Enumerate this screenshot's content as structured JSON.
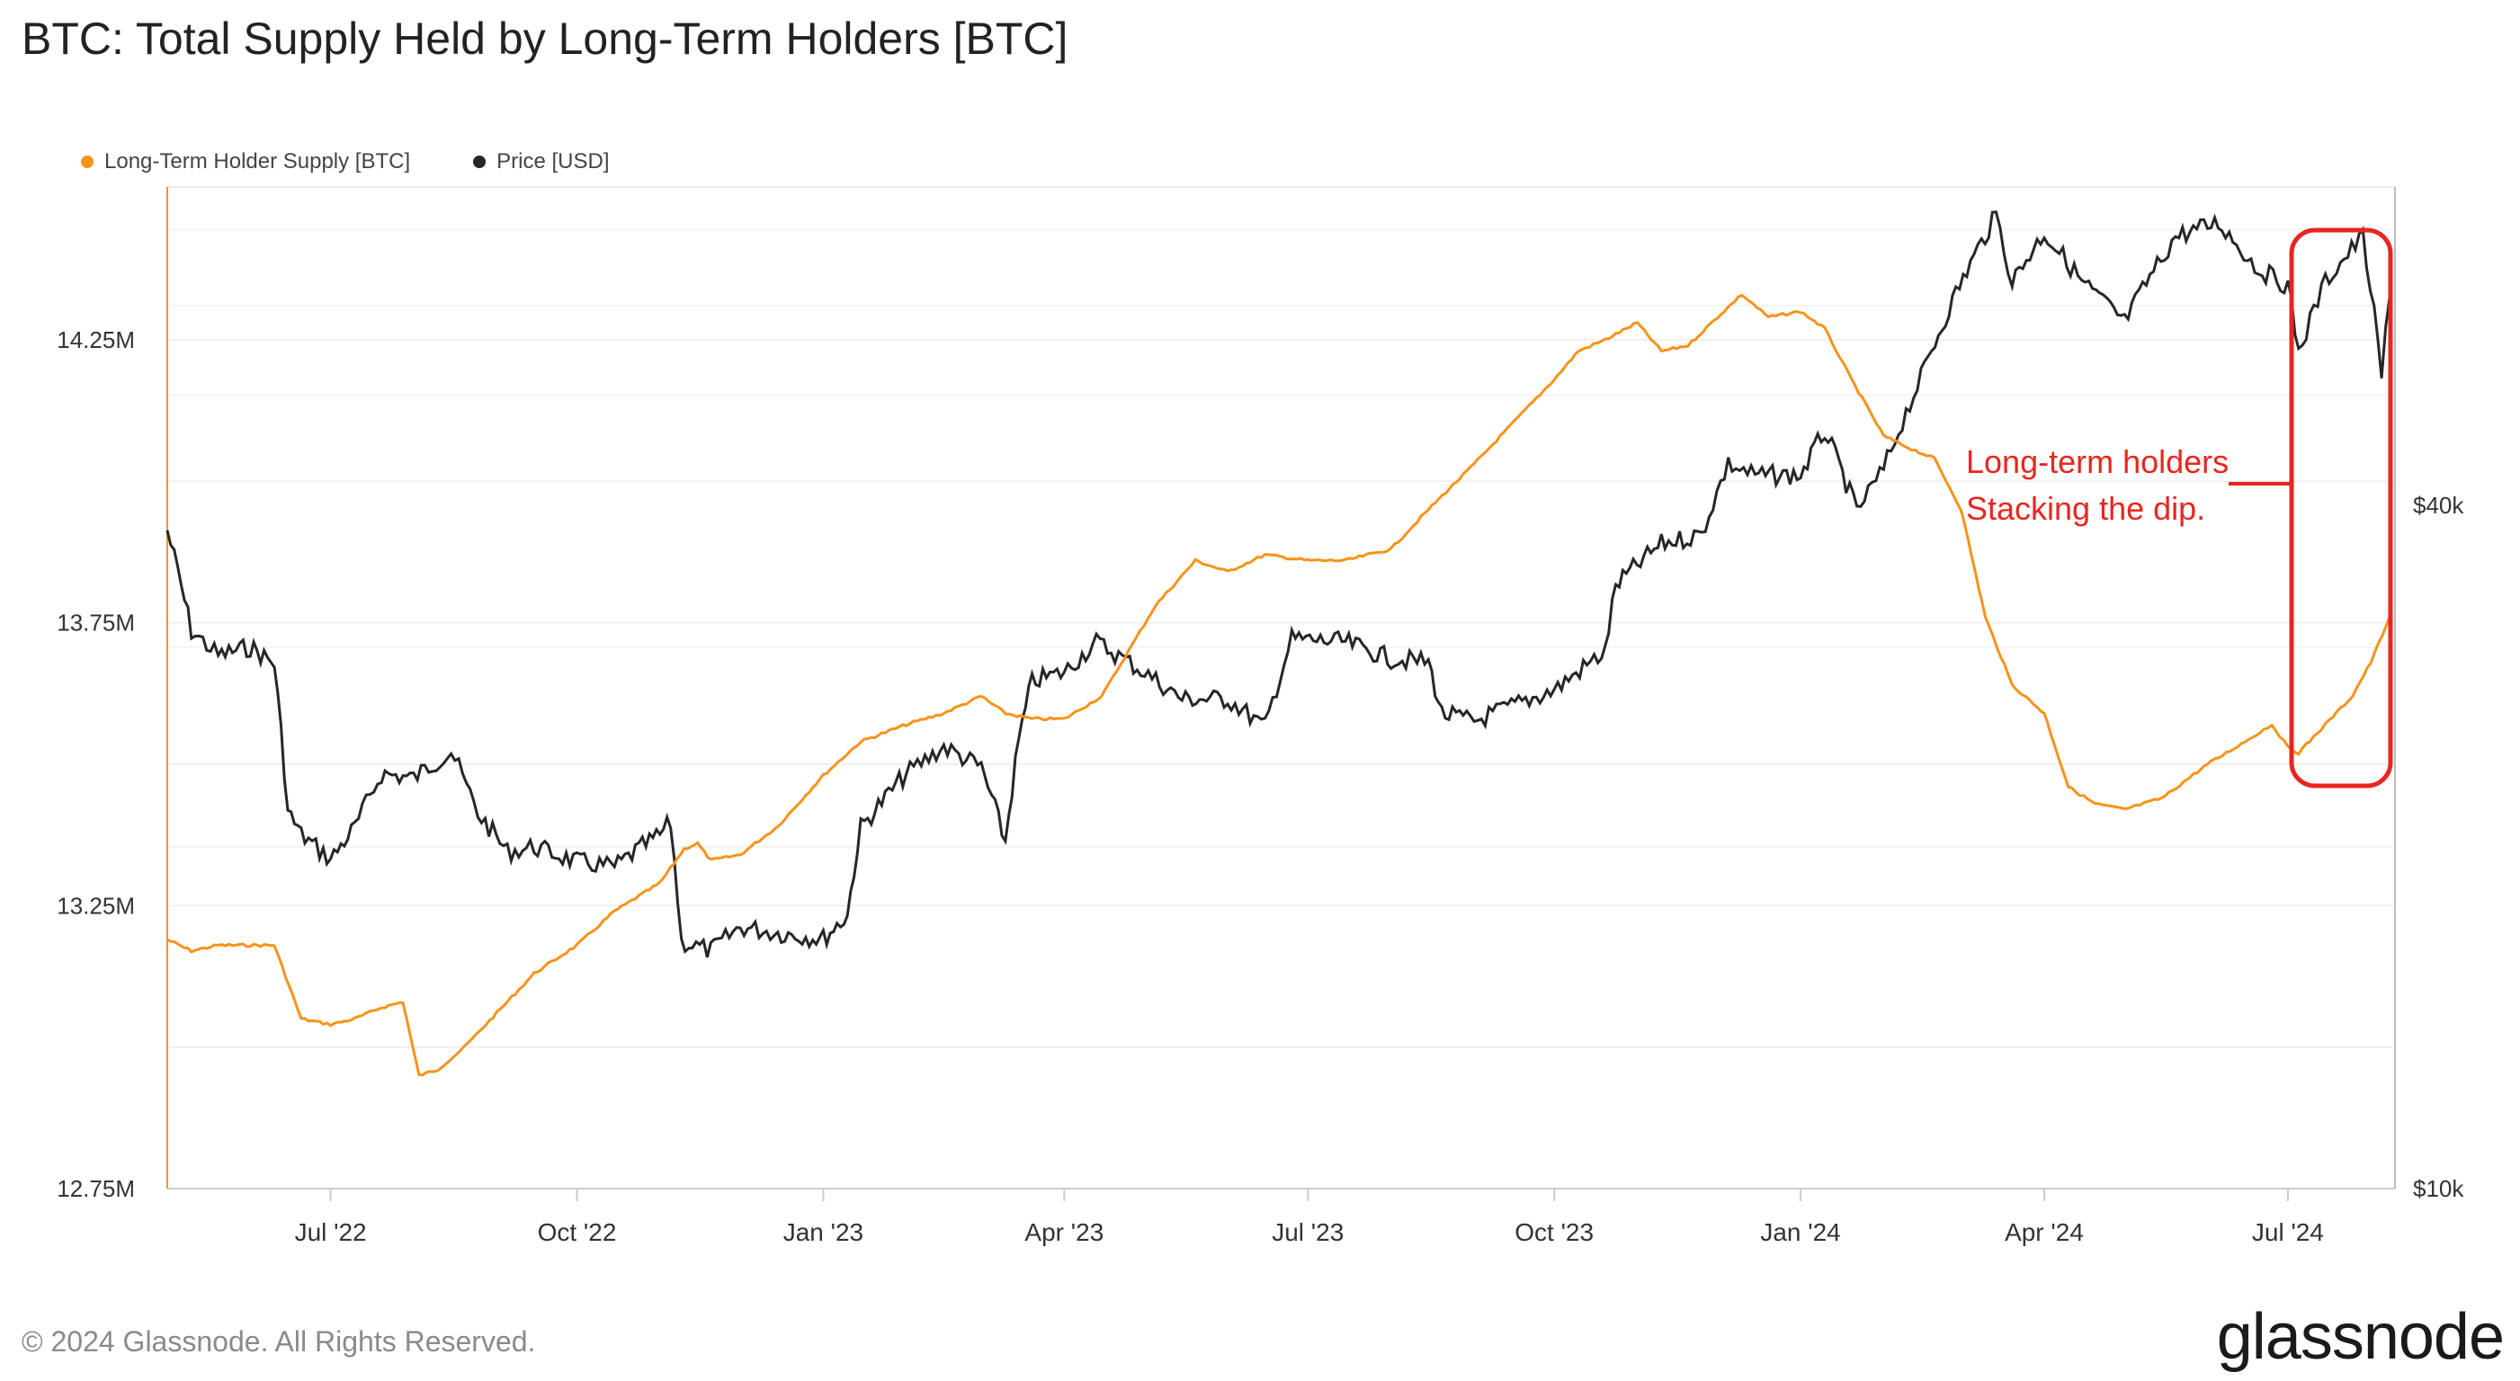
{
  "header": {
    "title": "BTC: Total Supply Held by Long-Term Holders [BTC]"
  },
  "footer": {
    "copyright": "© 2024 Glassnode. All Rights Reserved.",
    "brand": "glassnode"
  },
  "annotation": {
    "line1": "Long-term holders",
    "line2": "Stacking the dip.",
    "color": "#e8261f"
  },
  "chart_data": {
    "type": "line",
    "title": "BTC: Total Supply Held by Long-Term Holders [BTC]",
    "x_range": [
      "2022-05-01",
      "2024-08-10"
    ],
    "x_ticks": [
      {
        "label": "Jul '22",
        "date": "2022-07-01"
      },
      {
        "label": "Oct '22",
        "date": "2022-10-01"
      },
      {
        "label": "Jan '23",
        "date": "2023-01-01"
      },
      {
        "label": "Apr '23",
        "date": "2023-04-01"
      },
      {
        "label": "Jul '23",
        "date": "2023-07-01"
      },
      {
        "label": "Oct '23",
        "date": "2023-10-01"
      },
      {
        "label": "Jan '24",
        "date": "2024-01-01"
      },
      {
        "label": "Apr '24",
        "date": "2024-04-01"
      },
      {
        "label": "Jul '24",
        "date": "2024-07-01"
      }
    ],
    "y_left": {
      "ticks": [
        "14.25M",
        "13.75M",
        "13.25M",
        "12.75M"
      ],
      "tick_values": [
        14250000,
        13750000,
        13250000,
        12750000
      ],
      "range": [
        12750000,
        14520000
      ]
    },
    "y_right": {
      "scale": "log",
      "ticks": [
        "$40k",
        "$10k"
      ],
      "tick_values": [
        40000,
        10000
      ]
    },
    "grid": true,
    "legend_position": "top-left",
    "series": [
      {
        "name": "Long-Term Holder Supply [BTC]",
        "axis": "left",
        "color": "#f7931a",
        "points": [
          [
            "2022-05-01",
            13190000
          ],
          [
            "2022-05-10",
            13170000
          ],
          [
            "2022-05-20",
            13180000
          ],
          [
            "2022-06-01",
            13180000
          ],
          [
            "2022-06-10",
            13180000
          ],
          [
            "2022-06-20",
            13050000
          ],
          [
            "2022-07-01",
            13040000
          ],
          [
            "2022-07-10",
            13050000
          ],
          [
            "2022-07-20",
            13070000
          ],
          [
            "2022-07-28",
            13080000
          ],
          [
            "2022-08-03",
            12950000
          ],
          [
            "2022-08-10",
            12960000
          ],
          [
            "2022-08-20",
            13000000
          ],
          [
            "2022-09-01",
            13060000
          ],
          [
            "2022-09-15",
            13130000
          ],
          [
            "2022-10-01",
            13180000
          ],
          [
            "2022-10-15",
            13240000
          ],
          [
            "2022-11-01",
            13290000
          ],
          [
            "2022-11-10",
            13350000
          ],
          [
            "2022-11-15",
            13360000
          ],
          [
            "2022-11-20",
            13330000
          ],
          [
            "2022-12-01",
            13340000
          ],
          [
            "2022-12-15",
            13390000
          ],
          [
            "2023-01-01",
            13480000
          ],
          [
            "2023-01-15",
            13540000
          ],
          [
            "2023-02-01",
            13570000
          ],
          [
            "2023-02-15",
            13590000
          ],
          [
            "2023-03-01",
            13620000
          ],
          [
            "2023-03-10",
            13590000
          ],
          [
            "2023-03-20",
            13580000
          ],
          [
            "2023-04-01",
            13580000
          ],
          [
            "2023-04-15",
            13620000
          ],
          [
            "2023-04-25",
            13700000
          ],
          [
            "2023-05-05",
            13780000
          ],
          [
            "2023-05-20",
            13860000
          ],
          [
            "2023-06-01",
            13840000
          ],
          [
            "2023-06-15",
            13870000
          ],
          [
            "2023-07-01",
            13860000
          ],
          [
            "2023-07-15",
            13860000
          ],
          [
            "2023-08-01",
            13880000
          ],
          [
            "2023-08-15",
            13950000
          ],
          [
            "2023-09-01",
            14030000
          ],
          [
            "2023-09-15",
            14100000
          ],
          [
            "2023-10-01",
            14180000
          ],
          [
            "2023-10-10",
            14230000
          ],
          [
            "2023-10-20",
            14250000
          ],
          [
            "2023-11-01",
            14280000
          ],
          [
            "2023-11-10",
            14230000
          ],
          [
            "2023-11-20",
            14240000
          ],
          [
            "2023-12-01",
            14290000
          ],
          [
            "2023-12-10",
            14330000
          ],
          [
            "2023-12-20",
            14290000
          ],
          [
            "2024-01-01",
            14300000
          ],
          [
            "2024-01-10",
            14270000
          ],
          [
            "2024-01-20",
            14180000
          ],
          [
            "2024-02-01",
            14080000
          ],
          [
            "2024-02-10",
            14060000
          ],
          [
            "2024-02-20",
            14040000
          ],
          [
            "2024-03-01",
            13950000
          ],
          [
            "2024-03-10",
            13760000
          ],
          [
            "2024-03-20",
            13640000
          ],
          [
            "2024-04-01",
            13590000
          ],
          [
            "2024-04-10",
            13460000
          ],
          [
            "2024-04-20",
            13430000
          ],
          [
            "2024-05-01",
            13420000
          ],
          [
            "2024-05-15",
            13440000
          ],
          [
            "2024-06-01",
            13500000
          ],
          [
            "2024-06-15",
            13540000
          ],
          [
            "2024-06-25",
            13570000
          ],
          [
            "2024-07-01",
            13530000
          ],
          [
            "2024-07-05",
            13520000
          ],
          [
            "2024-07-15",
            13570000
          ],
          [
            "2024-07-25",
            13620000
          ],
          [
            "2024-08-01",
            13680000
          ],
          [
            "2024-08-08",
            13760000
          ]
        ]
      },
      {
        "name": "Price [USD]",
        "axis": "right",
        "color": "#262626",
        "points": [
          [
            "2022-05-01",
            38000
          ],
          [
            "2022-05-10",
            31000
          ],
          [
            "2022-05-20",
            29500
          ],
          [
            "2022-06-01",
            30000
          ],
          [
            "2022-06-10",
            29000
          ],
          [
            "2022-06-15",
            21500
          ],
          [
            "2022-06-20",
            20500
          ],
          [
            "2022-07-01",
            19500
          ],
          [
            "2022-07-10",
            20800
          ],
          [
            "2022-07-20",
            23200
          ],
          [
            "2022-08-01",
            23000
          ],
          [
            "2022-08-15",
            24300
          ],
          [
            "2022-08-25",
            21400
          ],
          [
            "2022-09-05",
            19800
          ],
          [
            "2022-09-15",
            20000
          ],
          [
            "2022-10-01",
            19400
          ],
          [
            "2022-10-15",
            19200
          ],
          [
            "2022-11-01",
            20500
          ],
          [
            "2022-11-05",
            21000
          ],
          [
            "2022-11-09",
            16500
          ],
          [
            "2022-11-20",
            16200
          ],
          [
            "2022-12-01",
            17000
          ],
          [
            "2022-12-15",
            16800
          ],
          [
            "2023-01-01",
            16600
          ],
          [
            "2023-01-10",
            17400
          ],
          [
            "2023-01-15",
            20800
          ],
          [
            "2023-02-01",
            23200
          ],
          [
            "2023-02-15",
            24500
          ],
          [
            "2023-03-01",
            23500
          ],
          [
            "2023-03-10",
            20200
          ],
          [
            "2023-03-15",
            24800
          ],
          [
            "2023-03-20",
            28000
          ],
          [
            "2023-04-01",
            28500
          ],
          [
            "2023-04-13",
            30300
          ],
          [
            "2023-05-01",
            28500
          ],
          [
            "2023-05-15",
            27000
          ],
          [
            "2023-06-01",
            27000
          ],
          [
            "2023-06-15",
            25500
          ],
          [
            "2023-06-25",
            30500
          ],
          [
            "2023-07-15",
            30300
          ],
          [
            "2023-08-01",
            29300
          ],
          [
            "2023-08-15",
            29100
          ],
          [
            "2023-08-20",
            26200
          ],
          [
            "2023-09-01",
            25800
          ],
          [
            "2023-09-15",
            26600
          ],
          [
            "2023-10-01",
            27500
          ],
          [
            "2023-10-20",
            29700
          ],
          [
            "2023-10-24",
            34000
          ],
          [
            "2023-11-10",
            37000
          ],
          [
            "2023-11-25",
            37700
          ],
          [
            "2023-12-05",
            43500
          ],
          [
            "2023-12-15",
            42500
          ],
          [
            "2024-01-01",
            42500
          ],
          [
            "2024-01-10",
            46500
          ],
          [
            "2024-01-22",
            39500
          ],
          [
            "2024-02-01",
            43000
          ],
          [
            "2024-02-15",
            51800
          ],
          [
            "2024-02-28",
            61500
          ],
          [
            "2024-03-14",
            72000
          ],
          [
            "2024-03-20",
            63000
          ],
          [
            "2024-04-01",
            69500
          ],
          [
            "2024-04-15",
            63000
          ],
          [
            "2024-05-01",
            58000
          ],
          [
            "2024-05-20",
            69000
          ],
          [
            "2024-06-05",
            71000
          ],
          [
            "2024-06-20",
            64500
          ],
          [
            "2024-07-01",
            62500
          ],
          [
            "2024-07-05",
            54500
          ],
          [
            "2024-07-15",
            63000
          ],
          [
            "2024-07-29",
            69000
          ],
          [
            "2024-08-05",
            52000
          ],
          [
            "2024-08-08",
            61000
          ]
        ]
      }
    ]
  }
}
